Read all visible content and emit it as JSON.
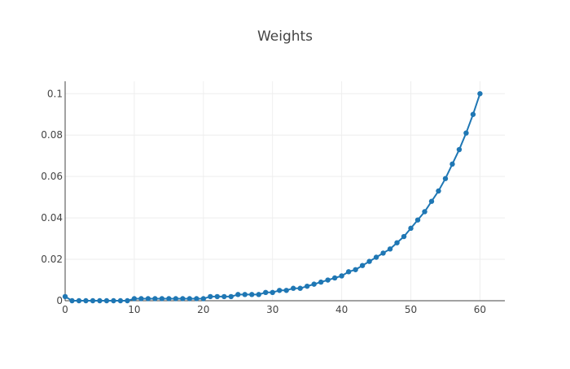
{
  "chart_data": {
    "type": "line",
    "title": "Weights",
    "xlabel": "",
    "ylabel": "",
    "xlim": [
      0,
      63.6
    ],
    "ylim": [
      0,
      0.106
    ],
    "x_ticks": [
      0,
      10,
      20,
      30,
      40,
      50,
      60
    ],
    "x_tick_labels": [
      "0",
      "10",
      "20",
      "30",
      "40",
      "50",
      "60"
    ],
    "y_ticks": [
      0,
      0.02,
      0.04,
      0.06,
      0.08,
      0.1
    ],
    "y_tick_labels": [
      "0",
      "0.02",
      "0.04",
      "0.06",
      "0.08",
      "0.1"
    ],
    "grid": true,
    "legend": "none",
    "colors": {
      "line": "#1f77b4",
      "marker": "#1f77b4"
    },
    "series": [
      {
        "x": [
          0,
          1,
          2,
          3,
          4,
          5,
          6,
          7,
          8,
          9,
          10,
          11,
          12,
          13,
          14,
          15,
          16,
          17,
          18,
          19,
          20,
          21,
          22,
          23,
          24,
          25,
          26,
          27,
          28,
          29,
          30,
          31,
          32,
          33,
          34,
          35,
          36,
          37,
          38,
          39,
          40,
          41,
          42,
          43,
          44,
          45,
          46,
          47,
          48,
          49,
          50,
          51,
          52,
          53,
          54,
          55,
          56,
          57,
          58,
          59,
          60
        ],
        "y": [
          0.002,
          0,
          0,
          0,
          0,
          0,
          0,
          0,
          0,
          0,
          0.001,
          0.001,
          0.001,
          0.001,
          0.001,
          0.001,
          0.001,
          0.001,
          0.001,
          0.001,
          0.001,
          0.002,
          0.002,
          0.002,
          0.002,
          0.003,
          0.003,
          0.003,
          0.003,
          0.004,
          0.004,
          0.005,
          0.005,
          0.006,
          0.006,
          0.007,
          0.008,
          0.009,
          0.01,
          0.011,
          0.012,
          0.014,
          0.015,
          0.017,
          0.019,
          0.021,
          0.023,
          0.025,
          0.028,
          0.031,
          0.035,
          0.039,
          0.043,
          0.048,
          0.053,
          0.059,
          0.066,
          0.073,
          0.081,
          0.09,
          0.1
        ]
      }
    ]
  }
}
